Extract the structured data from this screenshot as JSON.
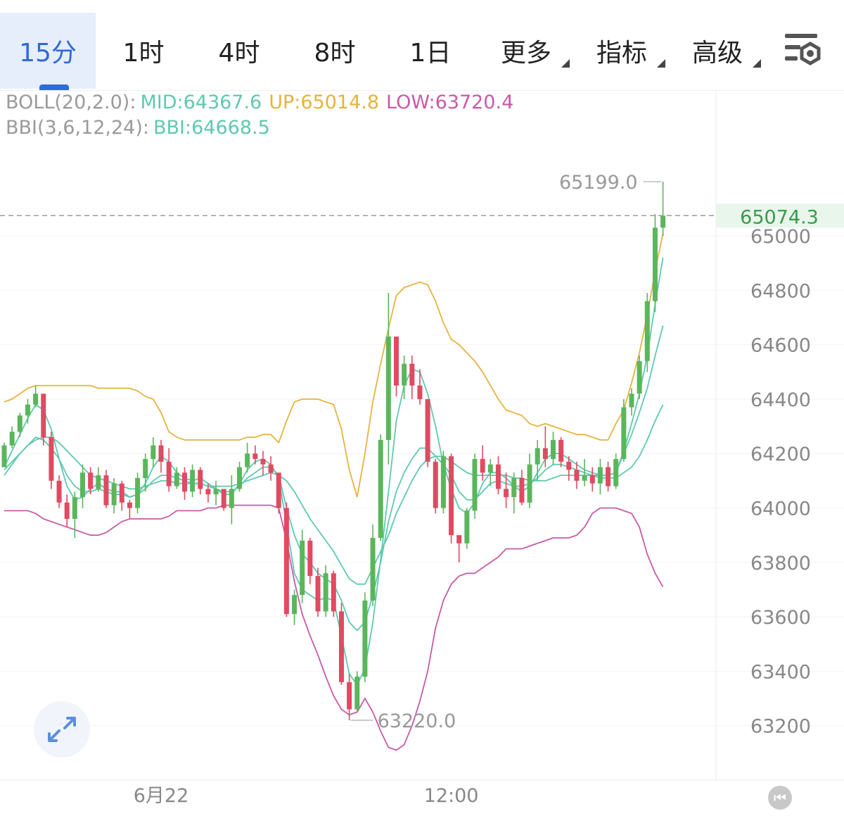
{
  "tabs": [
    {
      "label": "15分",
      "active": true
    },
    {
      "label": "1时"
    },
    {
      "label": "4时"
    },
    {
      "label": "8时"
    },
    {
      "label": "1日"
    },
    {
      "label": "更多",
      "dropdown": true
    },
    {
      "label": "指标",
      "dropdown": true
    },
    {
      "label": "高级",
      "dropdown": true
    }
  ],
  "settings_icon": "chart-settings-icon",
  "indicators": {
    "boll": {
      "label": "BOLL(20,2.0):",
      "mid": "MID:64367.6",
      "up": "UP:65014.8",
      "low": "LOW:63720.4"
    },
    "bbi": {
      "label": "BBI(3,6,12,24):",
      "bbi": "BBI:64668.5"
    }
  },
  "colors": {
    "up": "#5bb55c",
    "down": "#e04a62",
    "boll_mid": "#5fc8b0",
    "boll_up": "#e6b33e",
    "boll_low": "#c85aa8",
    "bbi": "#5fc8b0",
    "active_tab": "#2f6bd8",
    "last_price_bg": "#e8f6ec",
    "last_price_text": "#3a9a4a"
  },
  "chart_data": {
    "type": "candlestick",
    "interval": "15分",
    "y_ticks": [
      65000,
      64800,
      64600,
      64400,
      64200,
      64000,
      63800,
      63600,
      63400,
      63200
    ],
    "y_tick_labels": [
      "65000",
      "64800",
      "64600",
      "64400",
      "64200",
      "64000",
      "63800",
      "63600",
      "63400",
      "63200"
    ],
    "x_labels": [
      {
        "label": "6月22",
        "index": 20
      },
      {
        "label": "12:00",
        "index": 57
      }
    ],
    "last_price": "65074.3",
    "high_marker": {
      "label": "65199.0",
      "value": 65199.0,
      "index": 84
    },
    "low_marker": {
      "label": "63220.0",
      "value": 63220.0,
      "index": 44
    },
    "candles": [
      [
        64150,
        64240,
        64150,
        64230
      ],
      [
        64230,
        64300,
        64220,
        64280
      ],
      [
        64280,
        64350,
        64260,
        64340
      ],
      [
        64340,
        64400,
        64310,
        64380
      ],
      [
        64380,
        64450,
        64370,
        64420
      ],
      [
        64420,
        64410,
        64230,
        64260
      ],
      [
        64260,
        64280,
        64070,
        64100
      ],
      [
        64100,
        64120,
        64000,
        64020
      ],
      [
        64020,
        64050,
        63930,
        63960
      ],
      [
        63960,
        64060,
        63890,
        64040
      ],
      [
        64040,
        64160,
        64000,
        64130
      ],
      [
        64130,
        64150,
        64050,
        64070
      ],
      [
        64070,
        64150,
        64060,
        64120
      ],
      [
        64120,
        64140,
        64000,
        64010
      ],
      [
        64010,
        64110,
        63980,
        64090
      ],
      [
        64090,
        64100,
        63990,
        64020
      ],
      [
        64020,
        64030,
        63960,
        64000
      ],
      [
        64000,
        64130,
        63980,
        64110
      ],
      [
        64110,
        64200,
        64060,
        64180
      ],
      [
        64180,
        64260,
        64150,
        64230
      ],
      [
        64230,
        64250,
        64130,
        64170
      ],
      [
        64170,
        64220,
        64060,
        64080
      ],
      [
        64080,
        64150,
        64070,
        64130
      ],
      [
        64130,
        64150,
        64030,
        64060
      ],
      [
        64060,
        64160,
        64040,
        64140
      ],
      [
        64140,
        64150,
        64050,
        64070
      ],
      [
        64070,
        64090,
        64020,
        64050
      ],
      [
        64050,
        64100,
        64010,
        64070
      ],
      [
        64070,
        64070,
        63990,
        64000
      ],
      [
        64000,
        64120,
        63940,
        64070
      ],
      [
        64070,
        64170,
        64060,
        64150
      ],
      [
        64150,
        64240,
        64130,
        64200
      ],
      [
        64200,
        64230,
        64160,
        64180
      ],
      [
        64180,
        64210,
        64120,
        64160
      ],
      [
        64160,
        64190,
        64100,
        64130
      ],
      [
        64130,
        64120,
        63980,
        64000
      ],
      [
        64000,
        64020,
        63600,
        63610
      ],
      [
        63610,
        63700,
        63570,
        63680
      ],
      [
        63680,
        63920,
        63650,
        63880
      ],
      [
        63880,
        63890,
        63720,
        63750
      ],
      [
        63750,
        63780,
        63600,
        63620
      ],
      [
        63620,
        63790,
        63600,
        63760
      ],
      [
        63760,
        63770,
        63600,
        63620
      ],
      [
        63620,
        63650,
        63350,
        63360
      ],
      [
        63360,
        63390,
        63220,
        63260
      ],
      [
        63260,
        63400,
        63250,
        63380
      ],
      [
        63380,
        63690,
        63360,
        63660
      ],
      [
        63660,
        63940,
        63640,
        63890
      ],
      [
        63890,
        64270,
        63880,
        64250
      ],
      [
        64250,
        64790,
        64160,
        64630
      ],
      [
        64630,
        64620,
        64410,
        64450
      ],
      [
        64450,
        64560,
        64400,
        64530
      ],
      [
        64530,
        64560,
        64400,
        64450
      ],
      [
        64450,
        64510,
        64380,
        64400
      ],
      [
        64400,
        64390,
        64150,
        64170
      ],
      [
        64170,
        64180,
        63980,
        64000
      ],
      [
        64000,
        64210,
        63980,
        64190
      ],
      [
        64190,
        64200,
        63870,
        63900
      ],
      [
        63900,
        63900,
        63800,
        63870
      ],
      [
        63870,
        64000,
        63850,
        63990
      ],
      [
        63990,
        64200,
        63960,
        64180
      ],
      [
        64180,
        64230,
        64100,
        64130
      ],
      [
        64130,
        64180,
        64080,
        64160
      ],
      [
        64160,
        64190,
        64050,
        64070
      ],
      [
        64070,
        64130,
        64000,
        64040
      ],
      [
        64040,
        64130,
        63980,
        64110
      ],
      [
        64110,
        64140,
        64010,
        64020
      ],
      [
        64020,
        64200,
        64000,
        64160
      ],
      [
        64160,
        64250,
        64100,
        64220
      ],
      [
        64220,
        64300,
        64150,
        64180
      ],
      [
        64180,
        64280,
        64160,
        64250
      ],
      [
        64250,
        64260,
        64150,
        64170
      ],
      [
        64170,
        64190,
        64100,
        64140
      ],
      [
        64140,
        64170,
        64070,
        64100
      ],
      [
        64100,
        64180,
        64080,
        64120
      ],
      [
        64120,
        64150,
        64060,
        64090
      ],
      [
        64090,
        64180,
        64050,
        64150
      ],
      [
        64150,
        64170,
        64060,
        64080
      ],
      [
        64080,
        64200,
        64070,
        64180
      ],
      [
        64180,
        64400,
        64170,
        64370
      ],
      [
        64370,
        64440,
        64340,
        64420
      ],
      [
        64420,
        64560,
        64400,
        64540
      ],
      [
        64540,
        64790,
        64500,
        64760
      ],
      [
        64760,
        65080,
        64720,
        65030
      ],
      [
        65030,
        65199,
        65000,
        65074.3
      ]
    ],
    "series": [
      {
        "type": "boll_up",
        "values": [
          64390,
          64400,
          64420,
          64440,
          64450,
          64450,
          64450,
          64450,
          64450,
          64450,
          64450,
          64450,
          64440,
          64440,
          64440,
          64440,
          64440,
          64430,
          64410,
          64400,
          64350,
          64280,
          64260,
          64250,
          64250,
          64250,
          64250,
          64250,
          64250,
          64250,
          64250,
          64260,
          64260,
          64270,
          64270,
          64240,
          64320,
          64390,
          64400,
          64400,
          64400,
          64390,
          64380,
          64290,
          64140,
          64040,
          64200,
          64390,
          64530,
          64660,
          64780,
          64810,
          64820,
          64830,
          64820,
          64760,
          64680,
          64620,
          64600,
          64570,
          64540,
          64500,
          64450,
          64400,
          64360,
          64350,
          64340,
          64310,
          64300,
          64310,
          64300,
          64290,
          64280,
          64270,
          64270,
          64260,
          64250,
          64250,
          64310,
          64360,
          64460,
          64570,
          64710,
          64870,
          65010
        ]
      },
      {
        "type": "boll_mid",
        "values": [
          64140,
          64170,
          64200,
          64230,
          64250,
          64260,
          64260,
          64240,
          64210,
          64180,
          64150,
          64120,
          64110,
          64100,
          64090,
          64080,
          64070,
          64070,
          64080,
          64090,
          64100,
          64100,
          64090,
          64090,
          64090,
          64090,
          64080,
          64080,
          64080,
          64080,
          64090,
          64100,
          64110,
          64120,
          64130,
          64120,
          64100,
          64060,
          64010,
          63960,
          63920,
          63880,
          63840,
          63790,
          63740,
          63720,
          63720,
          63780,
          63840,
          63900,
          63980,
          64040,
          64100,
          64150,
          64180,
          64190,
          64190,
          64170,
          64150,
          64130,
          64120,
          64120,
          64120,
          64120,
          64120,
          64110,
          64110,
          64100,
          64100,
          64100,
          64110,
          64120,
          64120,
          64120,
          64120,
          64120,
          64110,
          64110,
          64110,
          64130,
          64150,
          64190,
          64250,
          64320,
          64380
        ]
      },
      {
        "type": "boll_low",
        "values": [
          63990,
          63990,
          63990,
          63990,
          63980,
          63960,
          63950,
          63940,
          63930,
          63920,
          63910,
          63900,
          63900,
          63910,
          63930,
          63950,
          63960,
          63960,
          63960,
          63960,
          63960,
          63970,
          63990,
          63990,
          63990,
          63990,
          64000,
          64000,
          64010,
          64010,
          64010,
          64010,
          64010,
          64010,
          64010,
          64000,
          63880,
          63730,
          63610,
          63530,
          63460,
          63380,
          63310,
          63260,
          63240,
          63250,
          63300,
          63250,
          63180,
          63120,
          63110,
          63130,
          63200,
          63290,
          63400,
          63560,
          63660,
          63720,
          63750,
          63760,
          63760,
          63780,
          63800,
          63820,
          63850,
          63850,
          63850,
          63860,
          63870,
          63880,
          63890,
          63890,
          63890,
          63900,
          63930,
          63980,
          64000,
          64000,
          64000,
          63990,
          63980,
          63930,
          63830,
          63760,
          63710
        ]
      },
      {
        "type": "bbi",
        "values": [
          64120,
          64160,
          64200,
          64230,
          64260,
          64250,
          64220,
          64180,
          64120,
          64080,
          64060,
          64060,
          64070,
          64060,
          64050,
          64050,
          64040,
          64050,
          64070,
          64100,
          64120,
          64120,
          64110,
          64100,
          64090,
          64090,
          64080,
          64070,
          64060,
          64060,
          64080,
          64110,
          64130,
          64150,
          64150,
          64120,
          64000,
          63900,
          63830,
          63800,
          63760,
          63740,
          63720,
          63660,
          63580,
          63550,
          63580,
          63680,
          63800,
          63950,
          64060,
          64130,
          64180,
          64220,
          64220,
          64190,
          64160,
          64120,
          64060,
          64030,
          64030,
          64060,
          64090,
          64100,
          64090,
          64080,
          64080,
          64090,
          64110,
          64140,
          64160,
          64160,
          64150,
          64140,
          64130,
          64120,
          64120,
          64120,
          64130,
          64200,
          64270,
          64350,
          64440,
          64560,
          64670
        ]
      },
      {
        "type": "ma_fast",
        "values": [
          64150,
          64210,
          64270,
          64330,
          64380,
          64360,
          64290,
          64180,
          64080,
          64030,
          64040,
          64070,
          64090,
          64070,
          64060,
          64060,
          64040,
          64050,
          64090,
          64150,
          64190,
          64170,
          64130,
          64110,
          64100,
          64110,
          64090,
          64070,
          64050,
          64050,
          64090,
          64140,
          64170,
          64180,
          64160,
          64110,
          63940,
          63760,
          63700,
          63680,
          63660,
          63670,
          63660,
          63530,
          63390,
          63350,
          63410,
          63580,
          63810,
          64060,
          64320,
          64450,
          64510,
          64500,
          64420,
          64300,
          64160,
          64070,
          64000,
          63980,
          64020,
          64090,
          64130,
          64130,
          64110,
          64080,
          64060,
          64080,
          64130,
          64180,
          64200,
          64200,
          64180,
          64160,
          64140,
          64130,
          64120,
          64120,
          64130,
          64210,
          64310,
          64420,
          64560,
          64750,
          64920
        ]
      }
    ]
  }
}
